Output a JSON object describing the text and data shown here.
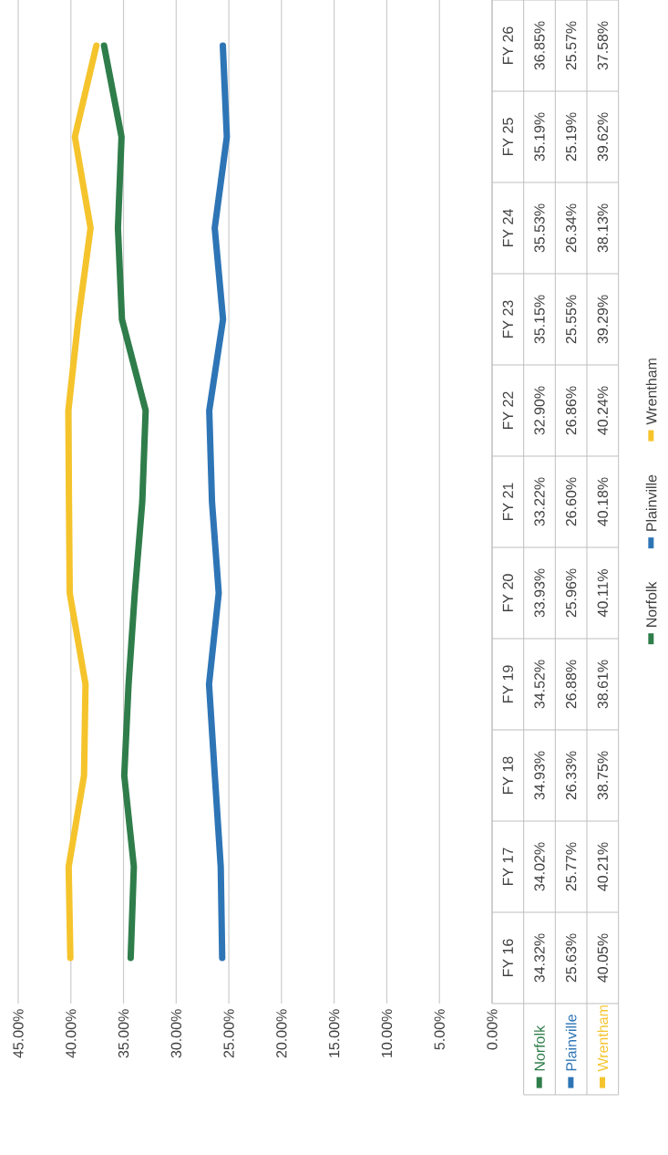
{
  "chart_data": {
    "type": "line",
    "orientation": "horizontal",
    "categories": [
      "FY 26",
      "FY 25",
      "FY 24",
      "FY 23",
      "FY 22",
      "FY 21",
      "FY 20",
      "FY 19",
      "FY 18",
      "FY 17",
      "FY 16"
    ],
    "series": [
      {
        "name": "Norfolk",
        "color": "#2f7d4a",
        "values": [
          36.85,
          35.19,
          35.53,
          35.15,
          32.9,
          33.22,
          33.93,
          34.52,
          34.93,
          34.02,
          34.32
        ],
        "value_labels": [
          "36.85%",
          "35.19%",
          "35.53%",
          "35.15%",
          "32.90%",
          "33.22%",
          "33.93%",
          "34.52%",
          "34.93%",
          "34.02%",
          "34.32%"
        ]
      },
      {
        "name": "Plainville",
        "color": "#2e75b6",
        "values": [
          25.57,
          25.19,
          26.34,
          25.55,
          26.86,
          26.6,
          25.96,
          26.88,
          26.33,
          25.77,
          25.63
        ],
        "value_labels": [
          "25.57%",
          "25.19%",
          "26.34%",
          "25.55%",
          "26.86%",
          "26.60%",
          "25.96%",
          "26.88%",
          "26.33%",
          "25.77%",
          "25.63%"
        ]
      },
      {
        "name": "Wrentham",
        "color": "#f5c42c",
        "values": [
          37.58,
          39.62,
          38.13,
          39.29,
          40.24,
          40.18,
          40.11,
          38.61,
          38.75,
          40.21,
          40.05
        ],
        "value_labels": [
          "37.58%",
          "39.62%",
          "38.13%",
          "39.29%",
          "40.24%",
          "40.18%",
          "40.11%",
          "38.61%",
          "38.75%",
          "40.21%",
          "40.05%"
        ]
      }
    ],
    "xlim": [
      45,
      0
    ],
    "xticks": [
      {
        "value": 0,
        "label": "0.00%"
      },
      {
        "value": 5,
        "label": "5.00%"
      },
      {
        "value": 10,
        "label": "10.00%"
      },
      {
        "value": 15,
        "label": "15.00%"
      },
      {
        "value": 20,
        "label": "20.00%"
      },
      {
        "value": 25,
        "label": "25.00%"
      },
      {
        "value": 30,
        "label": "30.00%"
      },
      {
        "value": 35,
        "label": "35.00%"
      },
      {
        "value": 40,
        "label": "40.00%"
      },
      {
        "value": 45,
        "label": "45.00%"
      }
    ],
    "grid": "x",
    "legend": "right",
    "marker": "none",
    "line_style": "solid"
  }
}
